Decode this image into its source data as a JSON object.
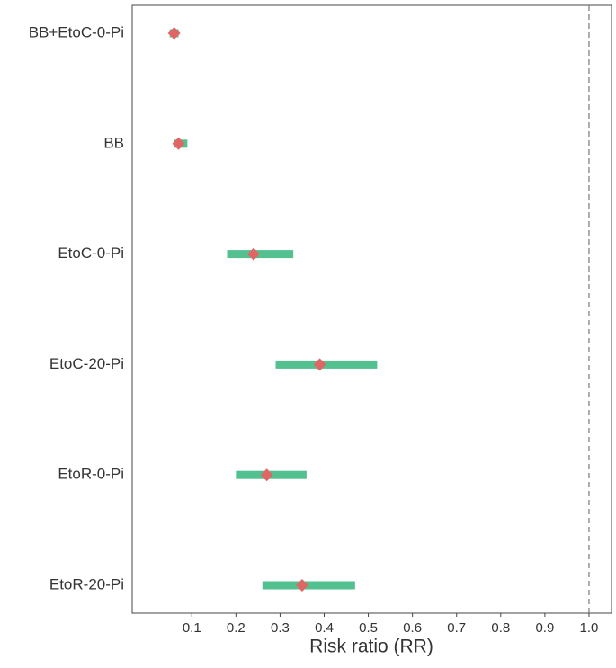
{
  "chart_data": {
    "type": "forest",
    "x_label": "Risk ratio (RR)",
    "categories": [
      "BB+EtoC-0-Pi",
      "BB",
      "EtoC-0-Pi",
      "EtoC-20-Pi",
      "EtoR-0-Pi",
      "EtoR-20-Pi"
    ],
    "values": [
      0.06,
      0.07,
      0.24,
      0.39,
      0.27,
      0.35
    ],
    "lower": [
      0.05,
      0.06,
      0.18,
      0.29,
      0.2,
      0.26
    ],
    "upper": [
      0.07,
      0.09,
      0.33,
      0.52,
      0.36,
      0.47
    ],
    "point_color": "#e06666",
    "ci_color": "#52c08f",
    "reference_line": 1,
    "xlim": [
      -0.035,
      1.051
    ],
    "xticks": [
      0.1,
      0.2,
      0.3,
      0.4,
      0.5,
      0.6,
      0.7,
      0.8,
      0.9,
      {
        "value": 1,
        "label": "1.0"
      }
    ],
    "grid": false
  }
}
